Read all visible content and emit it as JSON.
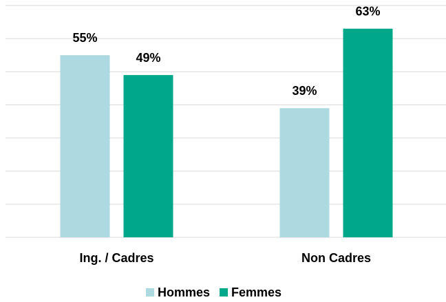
{
  "chart_data": {
    "type": "bar",
    "categories": [
      "Ing. / Cadres",
      "Non Cadres"
    ],
    "series": [
      {
        "name": "Hommes",
        "color": "#add9e0",
        "values": [
          55,
          39
        ],
        "value_labels": [
          "55%",
          "39%"
        ]
      },
      {
        "name": "Femmes",
        "color": "#00a88a",
        "values": [
          49,
          63
        ],
        "value_labels": [
          "49%",
          "63%"
        ]
      }
    ],
    "ylim": [
      0,
      70
    ],
    "yticks": [
      0,
      10,
      20,
      30,
      40,
      50,
      60,
      70
    ],
    "grid": true,
    "legend": "bottom"
  }
}
